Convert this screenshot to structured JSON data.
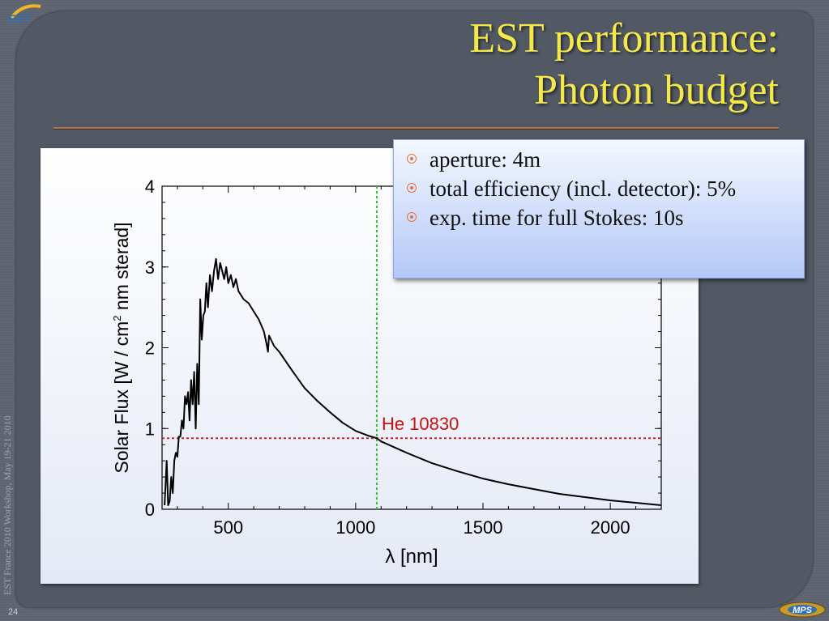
{
  "slide": {
    "title_line1": "EST performance:",
    "title_line2": "Photon budget",
    "logo_text": "EST",
    "footer_logo": "MPS",
    "side_text": "EST France 2010 Workshop, May 19-21 2010",
    "page_number": "24",
    "colors": {
      "title": "#f5e84a",
      "background": "#525964",
      "accent": "#e0743a"
    }
  },
  "callout": {
    "bullets": [
      "aperture: 4m",
      "total efficiency (incl. detector): 5%",
      "exp. time for full Stokes: 10s"
    ]
  },
  "chart_data": {
    "type": "line",
    "xlabel": "λ [nm]",
    "ylabel_prefix": "Solar Flux [W / cm",
    "ylabel_sup": "2",
    "ylabel_suffix": " nm sterad]",
    "xlim": [
      240,
      2200
    ],
    "ylim": [
      0,
      4
    ],
    "xticks": [
      500,
      1000,
      1500,
      2000
    ],
    "yticks": [
      0,
      1,
      2,
      3,
      4
    ],
    "series": [
      {
        "color": "#000000",
        "x": [
          250,
          258,
          264,
          270,
          276,
          282,
          288,
          294,
          300,
          306,
          312,
          318,
          324,
          330,
          336,
          342,
          348,
          354,
          360,
          366,
          372,
          378,
          384,
          390,
          396,
          402,
          408,
          414,
          420,
          428,
          436,
          444,
          452,
          460,
          468,
          476,
          484,
          492,
          500,
          510,
          520,
          530,
          540,
          560,
          580,
          600,
          620,
          640,
          650,
          656,
          660,
          680,
          700,
          750,
          800,
          850,
          900,
          950,
          1000,
          1050,
          1083,
          1100,
          1200,
          1300,
          1400,
          1500,
          1600,
          1700,
          1800,
          1900,
          2000,
          2100,
          2200
        ],
        "y": [
          0.05,
          0.6,
          0.05,
          0.1,
          0.4,
          0.2,
          0.6,
          0.7,
          0.65,
          0.9,
          0.9,
          1.1,
          1.0,
          1.4,
          1.3,
          1.45,
          1.1,
          1.6,
          1.3,
          1.7,
          1.0,
          1.8,
          1.3,
          2.6,
          2.1,
          2.4,
          2.45,
          2.8,
          2.5,
          2.9,
          2.7,
          2.95,
          3.1,
          2.85,
          3.05,
          2.95,
          2.85,
          3.0,
          2.8,
          2.9,
          2.75,
          2.85,
          2.7,
          2.6,
          2.55,
          2.45,
          2.35,
          2.2,
          2.05,
          1.95,
          2.15,
          2.02,
          1.95,
          1.72,
          1.5,
          1.34,
          1.2,
          1.07,
          0.97,
          0.91,
          0.88,
          0.84,
          0.7,
          0.57,
          0.47,
          0.38,
          0.31,
          0.25,
          0.19,
          0.15,
          0.11,
          0.08,
          0.05
        ]
      }
    ],
    "vline": {
      "x": 1083,
      "color": "#2ec22e"
    },
    "hline": {
      "y": 0.88,
      "color": "#cc2222"
    },
    "annotation": {
      "text": "He 10830",
      "x": 1083,
      "y": 0.88,
      "color": "#cc1111"
    }
  }
}
